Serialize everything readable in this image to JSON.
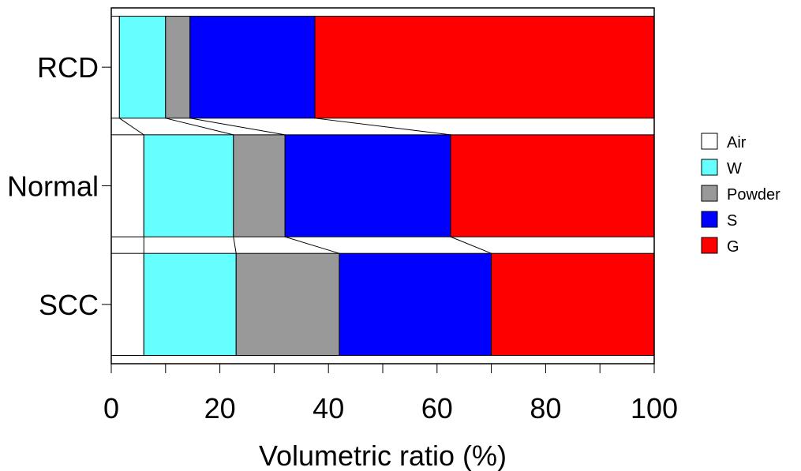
{
  "chart_data": {
    "type": "bar",
    "orientation": "horizontal",
    "stacked": true,
    "categories": [
      "RCD",
      "Normal",
      "SCC"
    ],
    "series": [
      {
        "name": "Air",
        "color": "#ffffff",
        "values": [
          1.5,
          6.0,
          6.0
        ]
      },
      {
        "name": "W",
        "color": "#66ffff",
        "values": [
          8.5,
          16.5,
          17.0
        ]
      },
      {
        "name": "Powder",
        "color": "#999999",
        "values": [
          4.5,
          9.5,
          19.0
        ]
      },
      {
        "name": "S",
        "color": "#0000ff",
        "values": [
          23.0,
          30.5,
          28.0
        ]
      },
      {
        "name": "G",
        "color": "#ff0000",
        "values": [
          62.5,
          37.5,
          30.0
        ]
      }
    ],
    "xlabel": "Volumetric ratio (%)",
    "ylabel": "",
    "xlim": [
      0,
      100
    ],
    "xticks": [
      "0",
      "20",
      "40",
      "60",
      "80",
      "100"
    ],
    "legend_position": "right",
    "connector_lines": true,
    "grid": false
  }
}
